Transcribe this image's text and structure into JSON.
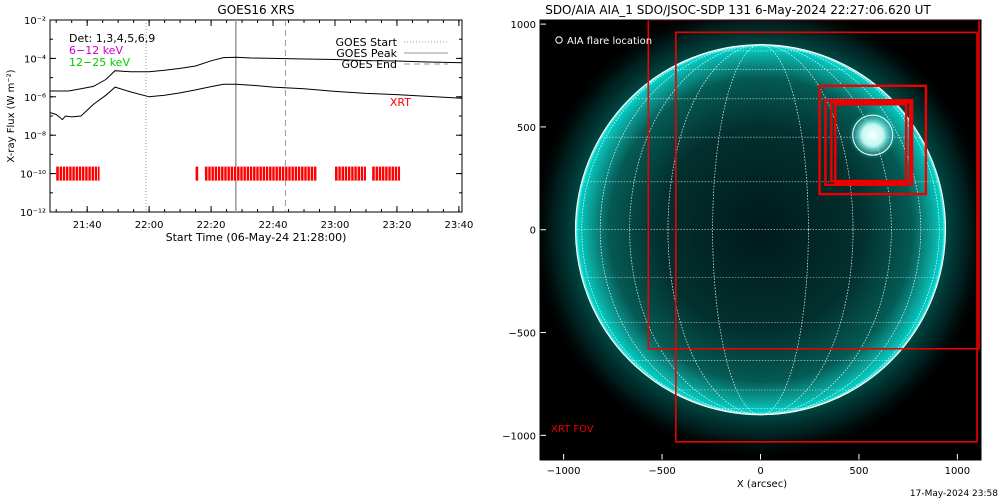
{
  "chart_data": [
    {
      "type": "line",
      "title": "GOES16 XRS",
      "xlabel": "Start Time (06-May-24 21:28:00)",
      "ylabel": "X-ray Flux (W m⁻²)",
      "ylog": true,
      "ylim": [
        1e-12,
        0.01
      ],
      "xlim": [
        "21:28",
        "23:41"
      ],
      "x_ticks": [
        "21:40",
        "22:00",
        "22:20",
        "22:40",
        "23:00",
        "23:20",
        "23:40"
      ],
      "y_ticks": [
        "10⁻¹²",
        "10⁻¹⁰",
        "10⁻⁸",
        "10⁻⁶",
        "10⁻⁴",
        "10⁻²"
      ],
      "legend_left": [
        {
          "text": "Det: 1,3,4,5,6,9",
          "color": "#000000"
        },
        {
          "text": "6−12 keV",
          "color": "#cc00cc"
        },
        {
          "text": "12−25 keV",
          "color": "#00cc00"
        }
      ],
      "legend_right": [
        {
          "text": "GOES Start",
          "style": "dotted"
        },
        {
          "text": "GOES Peak",
          "style": "solid"
        },
        {
          "text": "GOES End",
          "style": "dashed"
        }
      ],
      "xrt_label": "XRT",
      "markers": {
        "goes_start": "21:59",
        "goes_peak": "22:28",
        "goes_end": "22:44"
      },
      "series": [
        {
          "channel": "long",
          "x": [
            "21:28",
            "21:34",
            "21:38",
            "21:42",
            "21:46",
            "21:49",
            "21:54",
            "22:00",
            "22:05",
            "22:10",
            "22:15",
            "22:20",
            "22:24",
            "22:28",
            "22:33",
            "22:40",
            "22:50",
            "23:00",
            "23:10",
            "23:20",
            "23:30",
            "23:41"
          ],
          "y": [
            2e-06,
            2e-06,
            2.6e-06,
            3.5e-06,
            8e-06,
            2.3e-05,
            2e-05,
            2e-05,
            2.4e-05,
            3e-05,
            4e-05,
            7.5e-05,
            0.00011,
            0.000115,
            0.000105,
            0.0001,
            9.3e-05,
            8.8e-05,
            7.7e-05,
            7.3e-05,
            6.5e-05,
            5.9e-05
          ]
        },
        {
          "channel": "short",
          "x": [
            "21:28",
            "21:30",
            "21:32",
            "21:33",
            "21:35",
            "21:38",
            "21:42",
            "21:46",
            "21:49",
            "21:54",
            "22:00",
            "22:05",
            "22:10",
            "22:15",
            "22:20",
            "22:24",
            "22:28",
            "22:33",
            "22:40",
            "22:50",
            "23:00",
            "23:10",
            "23:20",
            "23:30",
            "23:41"
          ],
          "y": [
            1.5e-07,
            1.2e-07,
            6.5e-08,
            1e-07,
            9e-08,
            1e-07,
            4e-07,
            1.2e-06,
            3.2e-06,
            1.8e-06,
            1e-06,
            1.2e-06,
            1.6e-06,
            2.3e-06,
            3.4e-06,
            4.5e-06,
            4.5e-06,
            4e-06,
            3.2e-06,
            2.6e-06,
            1.9e-06,
            1.5e-06,
            1.3e-06,
            1.05e-06,
            8.5e-07
          ]
        }
      ],
      "xrt_coverage": [
        [
          "21:30",
          "21:44"
        ],
        [
          "22:15",
          "22:16"
        ],
        [
          "22:18",
          "22:54"
        ],
        [
          "23:00",
          "23:10"
        ],
        [
          "23:12",
          "23:21"
        ]
      ]
    },
    {
      "type": "scatter",
      "title": "SDO/AIA AIA_1 SDO/JSOC-SDP 131  6-May-2024 22:27:06.620 UT",
      "xlabel": "X (arcsec)",
      "ylabel": "",
      "xlim": [
        -1120,
        1120
      ],
      "ylim": [
        -1120,
        1020
      ],
      "x_ticks": [
        "−1000",
        "−500",
        "0",
        "500",
        "1000"
      ],
      "y_ticks": [
        "1000",
        "500",
        "0",
        "−500",
        "−1000"
      ],
      "legend": "AIA flare location",
      "fov_label": "XRT FOV",
      "colors": {
        "limb": "#00d0c8",
        "fov": "#ee0000",
        "grid": "#ffffff"
      },
      "flare_location": [
        570,
        460
      ],
      "solar_radius": 940,
      "fov_boxes": [
        [
          -570,
          -650,
          1110,
          1020
        ],
        [
          -430,
          -1120,
          1100,
          960
        ],
        [
          300,
          150,
          840,
          700
        ],
        [
          330,
          200,
          770,
          630
        ],
        [
          360,
          220,
          760,
          620
        ],
        [
          380,
          210,
          740,
          610
        ]
      ]
    }
  ],
  "footer": "17-May-2024 23:58"
}
